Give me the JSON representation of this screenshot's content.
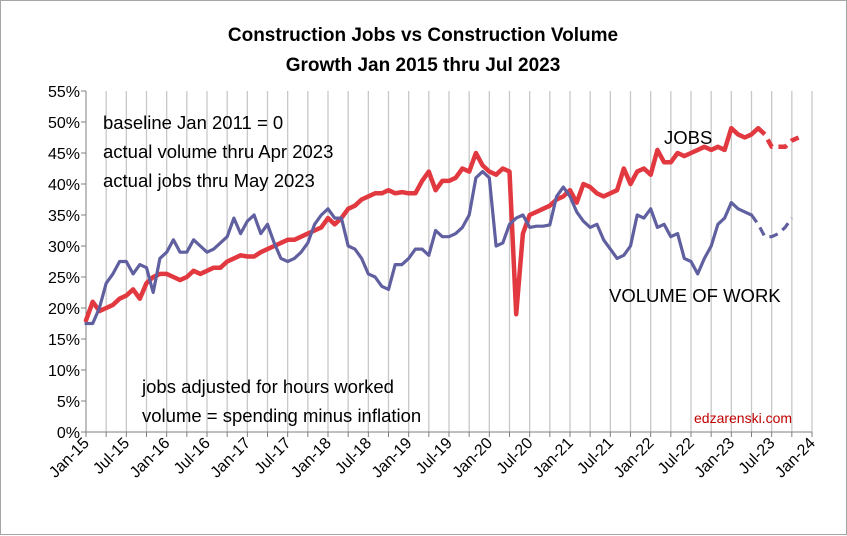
{
  "chart_data": {
    "type": "line",
    "title": "Construction Jobs vs Construction Volume",
    "subtitle": "Growth Jan 2015 thru Jul 2023",
    "x_start": "2015-01",
    "x_end": "2024-01",
    "xlabel": "",
    "ylabel": "",
    "ylim": [
      0,
      55
    ],
    "y_unit": "%",
    "yticks": [
      "0%",
      "5%",
      "10%",
      "15%",
      "20%",
      "25%",
      "30%",
      "35%",
      "40%",
      "45%",
      "50%",
      "55%"
    ],
    "xticks": [
      "Jan-15",
      "Jul-15",
      "Jan-16",
      "Jul-16",
      "Jan-17",
      "Jul-17",
      "Jan-18",
      "Jul-18",
      "Jan-19",
      "Jul-19",
      "Jan-20",
      "Jul-20",
      "Jan-21",
      "Jul-21",
      "Jan-22",
      "Jul-22",
      "Jan-23",
      "Jul-23",
      "Jan-24"
    ],
    "grid": "vertical",
    "series": [
      {
        "name": "JOBS",
        "color": "#e2383f",
        "actual_through": "2023-05",
        "values": [
          18.0,
          21.0,
          19.5,
          20.0,
          20.5,
          21.5,
          22.0,
          23.0,
          21.5,
          24.0,
          25.0,
          25.5,
          25.5,
          25.0,
          24.5,
          25.0,
          26.0,
          25.5,
          26.0,
          26.5,
          26.5,
          27.5,
          28.0,
          28.5,
          28.3,
          28.3,
          29.0,
          29.5,
          30.0,
          30.5,
          31.0,
          31.0,
          31.5,
          32.0,
          32.5,
          33.0,
          34.5,
          33.5,
          34.5,
          36.0,
          36.5,
          37.5,
          38.0,
          38.5,
          38.5,
          39.0,
          38.5,
          38.7,
          38.5,
          38.5,
          40.5,
          42.0,
          39.0,
          40.5,
          40.5,
          41.0,
          42.5,
          42.0,
          45.0,
          43.0,
          42.0,
          41.5,
          42.5,
          42.0,
          19.0,
          32.0,
          35.0,
          35.5,
          36.0,
          36.5,
          37.5,
          38.0,
          39.0,
          37.0,
          40.0,
          39.5,
          38.5,
          38.0,
          38.5,
          39.0,
          42.5,
          40.0,
          42.0,
          42.5,
          41.5,
          45.5,
          43.5,
          43.5,
          45.0,
          44.5,
          45.0,
          45.5,
          46.0,
          45.5,
          46.0,
          45.5,
          49.0,
          48.0,
          47.5,
          48.0,
          49.0,
          48.0,
          46.0,
          46.0,
          46.0,
          47.0,
          47.5
        ]
      },
      {
        "name": "VOLUME OF WORK",
        "color": "#6060a0",
        "actual_through": "2023-04",
        "values": [
          17.5,
          17.5,
          20.0,
          24.0,
          25.5,
          27.5,
          27.5,
          25.5,
          27.0,
          26.5,
          22.5,
          28.0,
          29.0,
          31.0,
          29.0,
          29.0,
          31.0,
          30.0,
          29.0,
          29.5,
          30.5,
          31.5,
          34.5,
          32.0,
          34.0,
          35.0,
          32.0,
          33.5,
          30.5,
          28.0,
          27.5,
          28.0,
          29.0,
          30.5,
          33.5,
          35.0,
          36.0,
          34.5,
          34.5,
          30.0,
          29.5,
          28.0,
          25.5,
          25.0,
          23.5,
          23.0,
          27.0,
          27.0,
          28.0,
          29.5,
          29.5,
          28.5,
          32.5,
          31.5,
          31.5,
          32.0,
          33.0,
          35.0,
          41.0,
          42.0,
          41.0,
          30.0,
          30.5,
          33.5,
          34.5,
          35.0,
          33.0,
          33.2,
          33.2,
          33.4,
          38.0,
          39.5,
          38.0,
          35.5,
          34.0,
          33.0,
          33.5,
          31.0,
          29.5,
          28.0,
          28.5,
          30.0,
          35.0,
          34.5,
          36.0,
          33.0,
          33.5,
          31.5,
          32.0,
          28.0,
          27.5,
          25.5,
          28.0,
          30.0,
          33.5,
          34.5,
          37.0,
          36.0,
          35.5,
          35.0,
          33.5,
          31.5,
          31.5,
          32.0,
          33.0,
          34.5
        ]
      }
    ],
    "annotations": {
      "baseline": "baseline Jan 2011 = 0",
      "actual_volume": "actual volume thru Apr 2023",
      "actual_jobs": "actual jobs thru May 2023",
      "jobs_adjusted": "jobs adjusted for hours worked",
      "volume_def": "volume = spending minus inflation"
    },
    "credit": "edzarenski.com",
    "credit_color": "#c00000"
  }
}
